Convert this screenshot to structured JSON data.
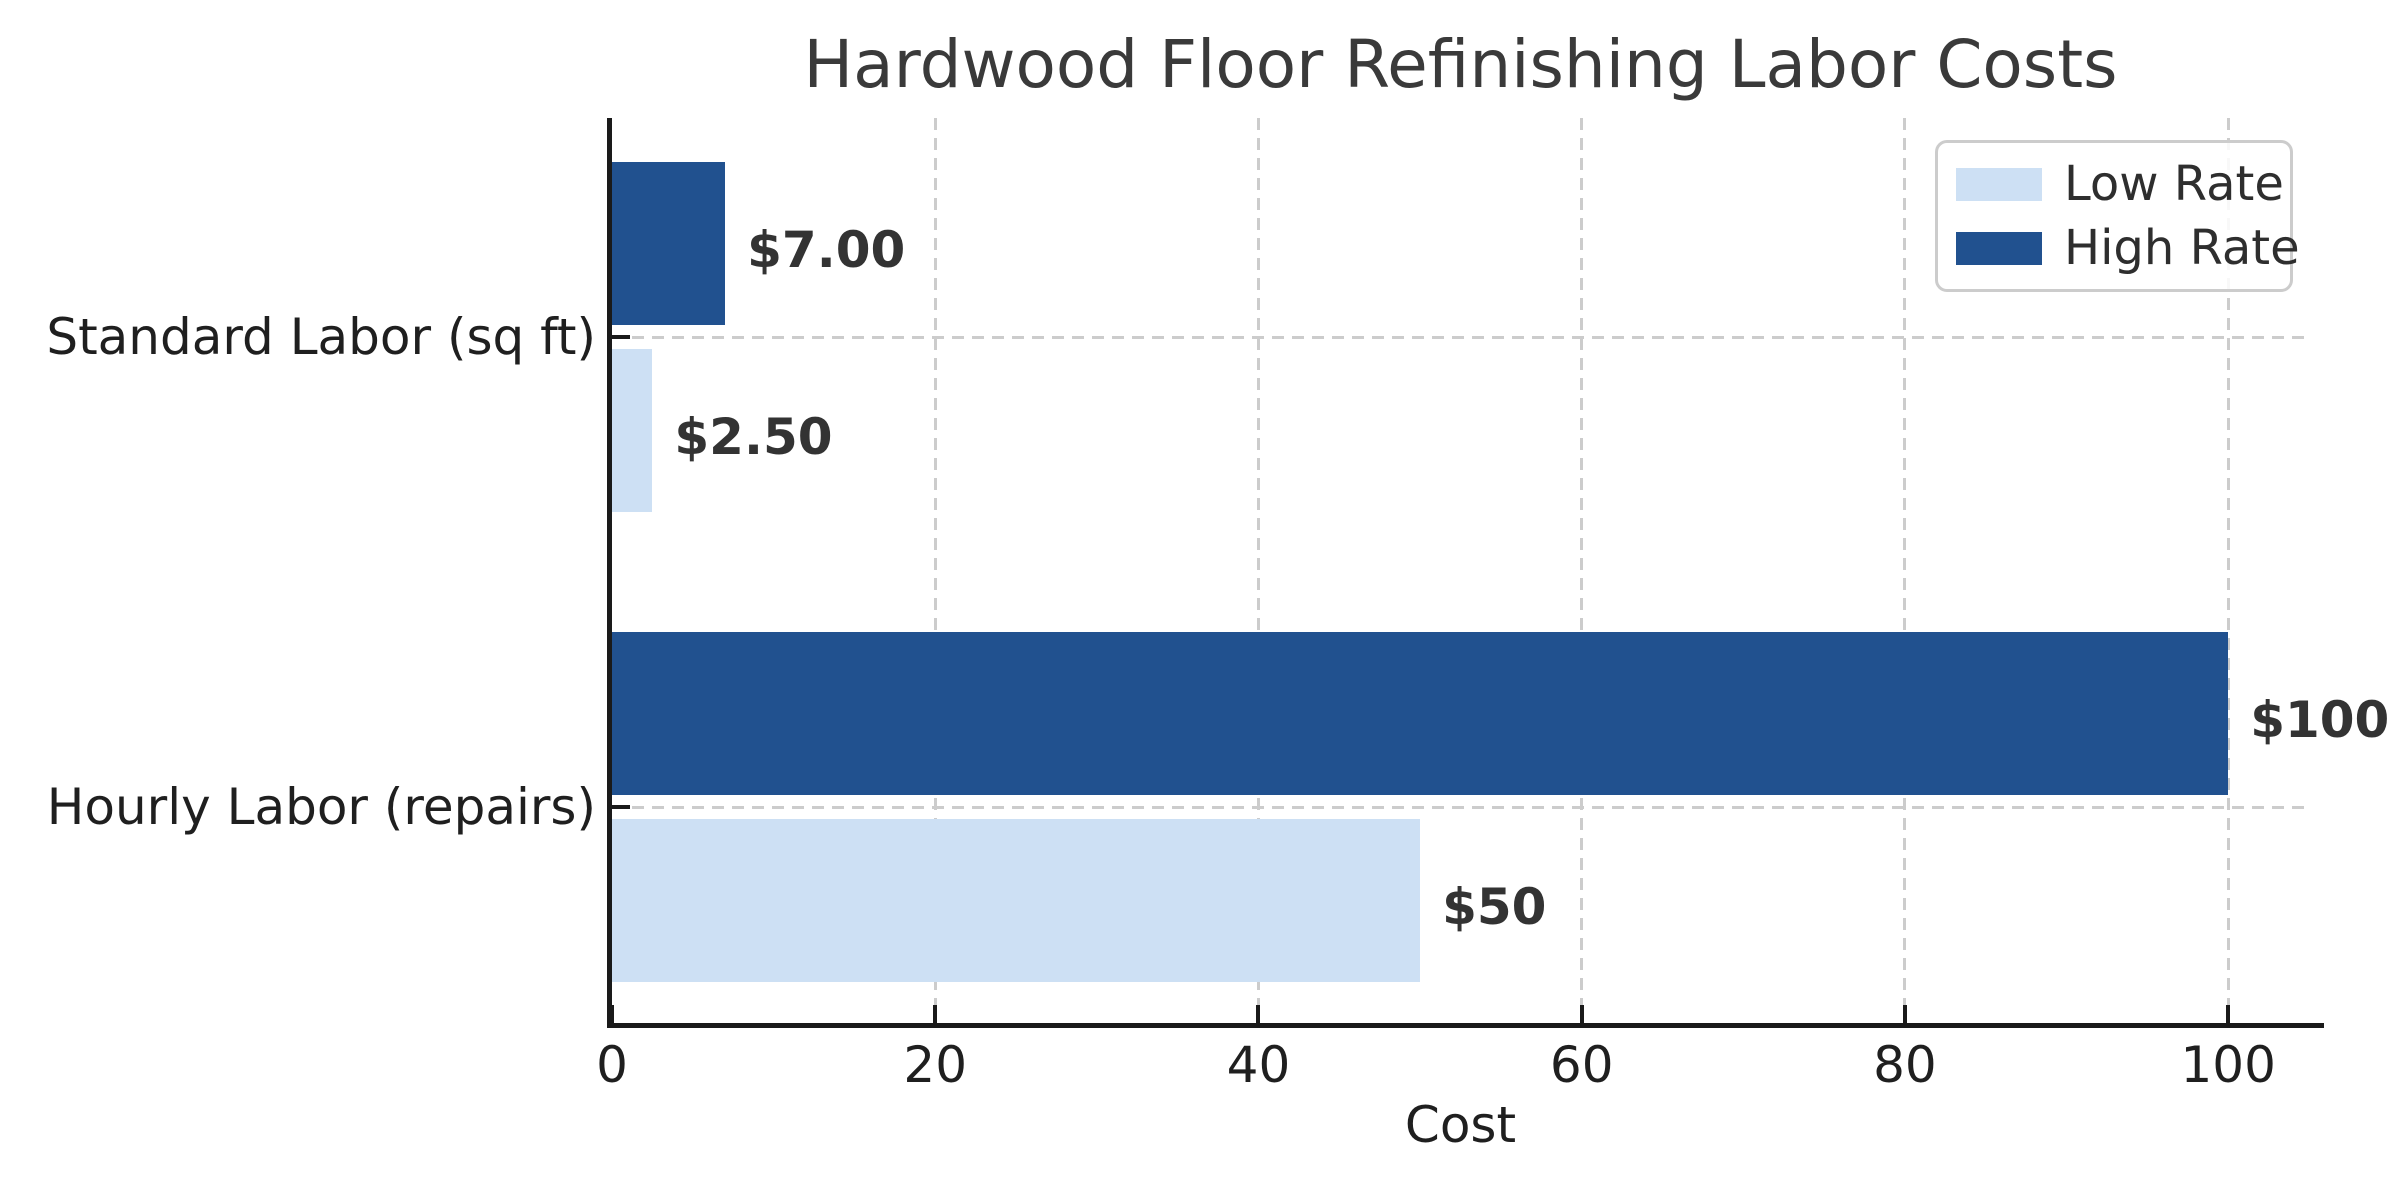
{
  "chart_data": {
    "type": "bar",
    "orientation": "horizontal",
    "title": "Hardwood Floor Refinishing Labor Costs",
    "xlabel": "Cost",
    "categories": [
      "Standard Labor (sq ft)",
      "Hourly Labor (repairs)"
    ],
    "series": [
      {
        "name": "Low Rate",
        "color": "#cde0f4",
        "values": [
          2.5,
          50
        ],
        "labels": [
          "$2.50",
          "$50"
        ]
      },
      {
        "name": "High Rate",
        "color": "#21518f",
        "values": [
          7.0,
          100
        ],
        "labels": [
          "$7.00",
          "$100"
        ]
      }
    ],
    "x_ticks": [
      0,
      20,
      40,
      60,
      80,
      100
    ],
    "xlim": [
      0,
      105
    ],
    "grid": "dashed-gray",
    "legend_position": "top-right"
  },
  "colors": {
    "low_rate": "#cde0f4",
    "high_rate": "#21518f",
    "gridline": "#cccccc",
    "spine": "#1a1a1a",
    "title_text": "#3a3a3a",
    "tick_text": "#1f1f1f",
    "value_text": "#333333"
  }
}
